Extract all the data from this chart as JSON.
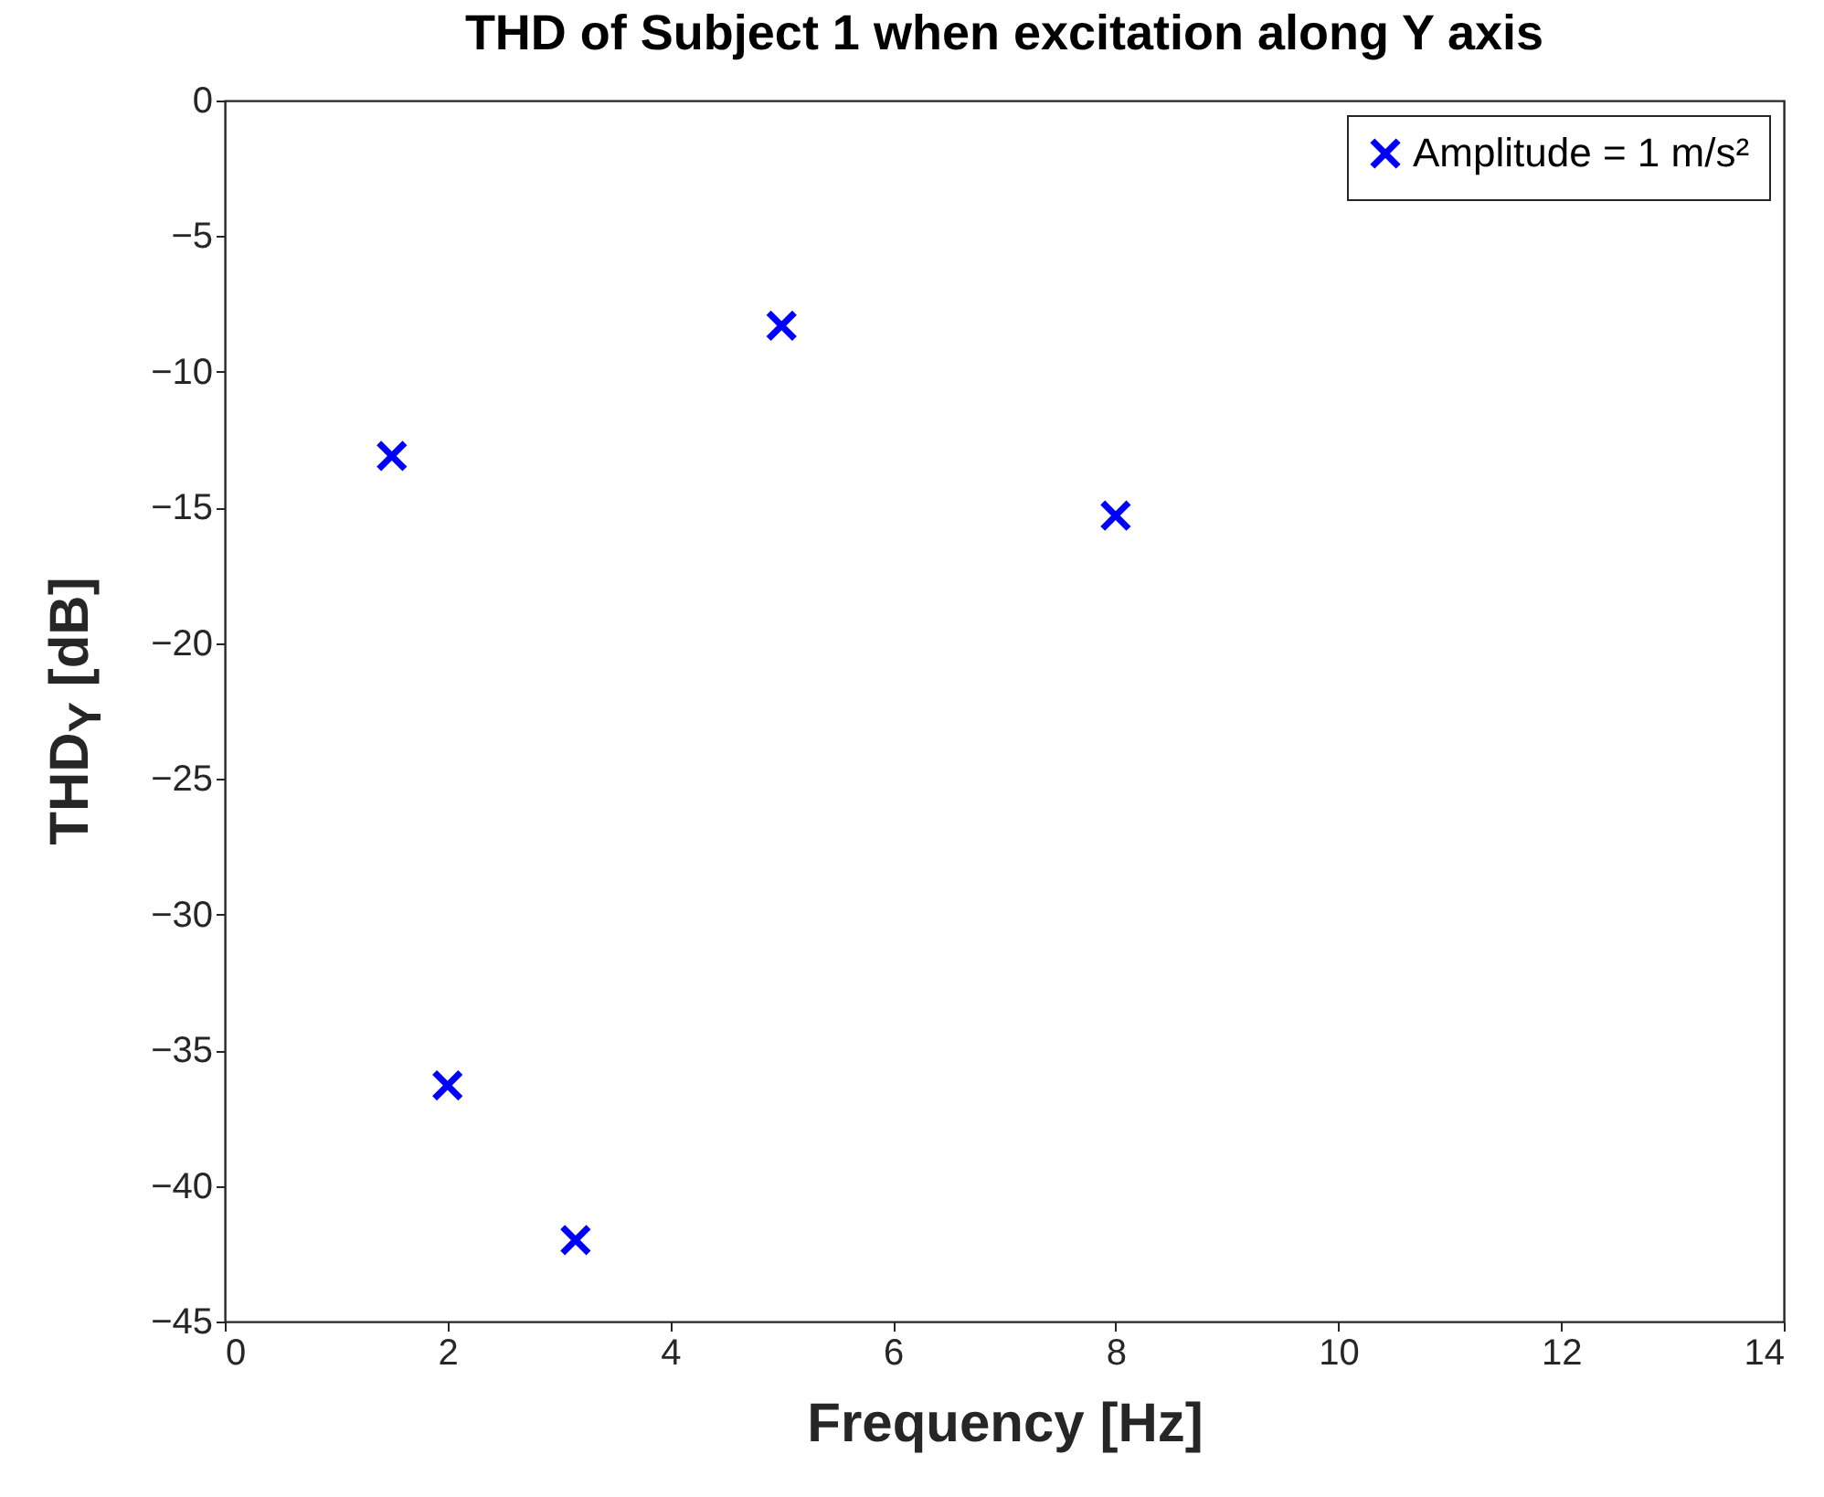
{
  "chart_data": {
    "type": "scatter",
    "title": "THD of Subject 1 when excitation along Y axis",
    "xlabel": "Frequency [Hz]",
    "ylabel": "THD$_{Y}$ [dB]",
    "x": [
      1.5,
      2,
      3.15,
      5,
      8
    ],
    "series": [
      {
        "name": "Amplitude = 1 m/s²",
        "color": "#0000ff",
        "values": [
          -13.1,
          -36.3,
          -42.0,
          -8.3,
          -15.3
        ]
      }
    ],
    "xlim": [
      0,
      14
    ],
    "xticks": [
      0,
      2,
      4,
      6,
      8,
      10,
      12,
      14
    ],
    "ylim": [
      -45,
      0
    ],
    "yticks": [
      -45,
      -40,
      -35,
      -30,
      -25,
      -20,
      -15,
      -10,
      -5,
      0
    ],
    "marker": "cross",
    "legend": "top right",
    "grid": false
  }
}
